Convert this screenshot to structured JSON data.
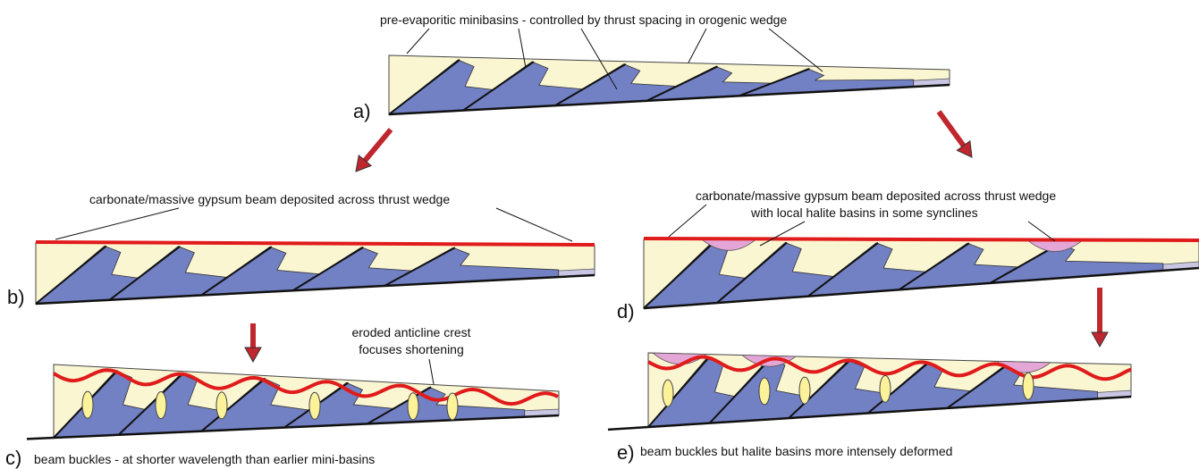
{
  "panels": [
    {
      "label": "a)",
      "annotations": [
        "pre-evaporitic minibasins - controlled by thrust spacing in orogenic wedge"
      ]
    },
    {
      "label": "b)",
      "annotations": [
        "carbonate/massive gypsum beam deposited across thrust wedge"
      ]
    },
    {
      "label": "c)",
      "annotations": [
        "eroded anticline crest",
        "focuses shortening",
        "beam buckles - at shorter wavelength than earlier mini-basins"
      ]
    },
    {
      "label": "d)",
      "annotations": [
        "carbonate/massive gypsum beam deposited across thrust wedge",
        "with local halite basins in some synclines"
      ]
    },
    {
      "label": "e)",
      "annotations": [
        "beam buckles but halite basins more intensely deformed"
      ]
    }
  ]
}
